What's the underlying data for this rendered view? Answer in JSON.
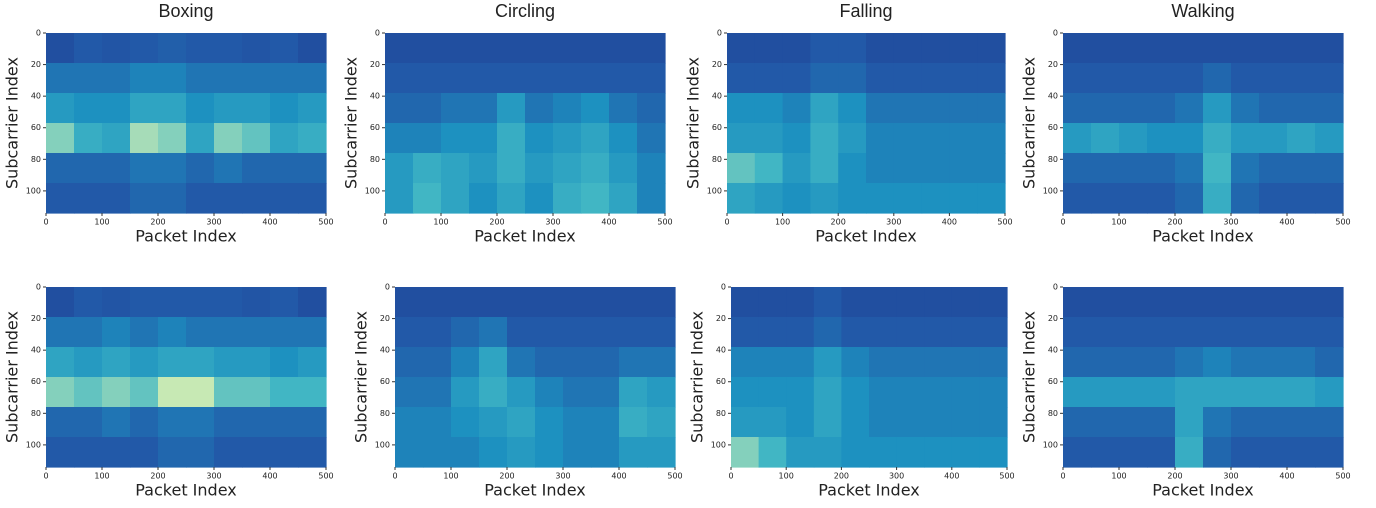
{
  "chart_data": [
    {
      "type": "heatmap",
      "title": "Boxing",
      "xlabel": "Packet Index",
      "ylabel": "Subcarrier Index",
      "xlim": [
        0,
        500
      ],
      "ylim": [
        114,
        0
      ],
      "xticks": [
        0,
        100,
        200,
        300,
        400,
        500
      ],
      "yticks": [
        0,
        20,
        40,
        60,
        80,
        100
      ],
      "zlim": [
        0,
        1
      ],
      "colorscale": [
        "#1f2f86",
        "#2259a8",
        "#1d91c0",
        "#41b6c4",
        "#c7e9b4",
        "#eef8b0"
      ],
      "z": [
        [
          0.15,
          0.2,
          0.18,
          0.2,
          0.22,
          0.2,
          0.2,
          0.18,
          0.2,
          0.15
        ],
        [
          0.3,
          0.3,
          0.3,
          0.35,
          0.35,
          0.3,
          0.3,
          0.3,
          0.3,
          0.3
        ],
        [
          0.45,
          0.4,
          0.4,
          0.5,
          0.5,
          0.4,
          0.45,
          0.45,
          0.4,
          0.45
        ],
        [
          0.7,
          0.55,
          0.5,
          0.75,
          0.7,
          0.5,
          0.7,
          0.65,
          0.5,
          0.55
        ],
        [
          0.25,
          0.25,
          0.25,
          0.3,
          0.3,
          0.25,
          0.3,
          0.25,
          0.25,
          0.25
        ],
        [
          0.2,
          0.2,
          0.2,
          0.25,
          0.25,
          0.2,
          0.2,
          0.2,
          0.2,
          0.2
        ]
      ]
    },
    {
      "type": "heatmap",
      "title": "Circling",
      "xlabel": "Packet Index",
      "ylabel": "Subcarrier Index",
      "xlim": [
        0,
        500
      ],
      "ylim": [
        114,
        0
      ],
      "xticks": [
        0,
        100,
        200,
        300,
        400,
        500
      ],
      "yticks": [
        0,
        20,
        40,
        60,
        80,
        100
      ],
      "zlim": [
        0,
        1
      ],
      "colorscale": [
        "#1f2f86",
        "#2259a8",
        "#1d91c0",
        "#41b6c4",
        "#c7e9b4",
        "#eef8b0"
      ],
      "z": [
        [
          0.15,
          0.15,
          0.15,
          0.15,
          0.15,
          0.15,
          0.15,
          0.15,
          0.15,
          0.15
        ],
        [
          0.2,
          0.2,
          0.2,
          0.2,
          0.2,
          0.2,
          0.2,
          0.2,
          0.2,
          0.2
        ],
        [
          0.25,
          0.25,
          0.3,
          0.3,
          0.45,
          0.3,
          0.35,
          0.4,
          0.3,
          0.25
        ],
        [
          0.35,
          0.35,
          0.4,
          0.4,
          0.55,
          0.4,
          0.45,
          0.5,
          0.4,
          0.3
        ],
        [
          0.45,
          0.55,
          0.5,
          0.45,
          0.55,
          0.45,
          0.5,
          0.55,
          0.45,
          0.35
        ],
        [
          0.45,
          0.6,
          0.5,
          0.4,
          0.5,
          0.4,
          0.55,
          0.6,
          0.5,
          0.35
        ]
      ]
    },
    {
      "type": "heatmap",
      "title": "Falling",
      "xlabel": "Packet Index",
      "ylabel": "Subcarrier Index",
      "xlim": [
        0,
        500
      ],
      "ylim": [
        114,
        0
      ],
      "xticks": [
        0,
        100,
        200,
        300,
        400,
        500
      ],
      "yticks": [
        0,
        20,
        40,
        60,
        80,
        100
      ],
      "zlim": [
        0,
        1
      ],
      "colorscale": [
        "#1f2f86",
        "#2259a8",
        "#1d91c0",
        "#41b6c4",
        "#c7e9b4",
        "#eef8b0"
      ],
      "z": [
        [
          0.15,
          0.15,
          0.15,
          0.2,
          0.2,
          0.15,
          0.15,
          0.15,
          0.15,
          0.15
        ],
        [
          0.2,
          0.2,
          0.2,
          0.25,
          0.25,
          0.2,
          0.2,
          0.2,
          0.2,
          0.2
        ],
        [
          0.4,
          0.4,
          0.35,
          0.5,
          0.4,
          0.3,
          0.3,
          0.3,
          0.3,
          0.3
        ],
        [
          0.45,
          0.45,
          0.4,
          0.55,
          0.45,
          0.35,
          0.35,
          0.35,
          0.35,
          0.35
        ],
        [
          0.65,
          0.6,
          0.45,
          0.55,
          0.4,
          0.35,
          0.35,
          0.35,
          0.35,
          0.35
        ],
        [
          0.5,
          0.45,
          0.4,
          0.45,
          0.4,
          0.4,
          0.4,
          0.4,
          0.4,
          0.4
        ]
      ]
    },
    {
      "type": "heatmap",
      "title": "Walking",
      "xlabel": "Packet Index",
      "ylabel": "Subcarrier Index",
      "xlim": [
        0,
        500
      ],
      "ylim": [
        114,
        0
      ],
      "xticks": [
        0,
        100,
        200,
        300,
        400,
        500
      ],
      "yticks": [
        0,
        20,
        40,
        60,
        80,
        100
      ],
      "zlim": [
        0,
        1
      ],
      "colorscale": [
        "#1f2f86",
        "#2259a8",
        "#1d91c0",
        "#41b6c4",
        "#c7e9b4",
        "#eef8b0"
      ],
      "z": [
        [
          0.15,
          0.15,
          0.15,
          0.15,
          0.15,
          0.15,
          0.15,
          0.15,
          0.15,
          0.15
        ],
        [
          0.2,
          0.2,
          0.2,
          0.2,
          0.2,
          0.25,
          0.2,
          0.2,
          0.2,
          0.2
        ],
        [
          0.25,
          0.25,
          0.25,
          0.25,
          0.3,
          0.45,
          0.3,
          0.25,
          0.25,
          0.25
        ],
        [
          0.45,
          0.5,
          0.45,
          0.4,
          0.4,
          0.55,
          0.45,
          0.45,
          0.5,
          0.45
        ],
        [
          0.25,
          0.25,
          0.25,
          0.25,
          0.3,
          0.6,
          0.3,
          0.25,
          0.25,
          0.25
        ],
        [
          0.2,
          0.2,
          0.2,
          0.2,
          0.25,
          0.55,
          0.25,
          0.2,
          0.2,
          0.2
        ]
      ]
    },
    {
      "type": "heatmap",
      "xlabel": "Packet Index",
      "ylabel": "Subcarrier Index",
      "xlim": [
        0,
        500
      ],
      "ylim": [
        114,
        0
      ],
      "xticks": [
        0,
        100,
        200,
        300,
        400,
        500
      ],
      "yticks": [
        0,
        20,
        40,
        60,
        80,
        100
      ],
      "zlim": [
        0,
        1
      ],
      "colorscale": [
        "#1f2f86",
        "#2259a8",
        "#1d91c0",
        "#41b6c4",
        "#c7e9b4",
        "#eef8b0"
      ],
      "z": [
        [
          0.15,
          0.2,
          0.18,
          0.2,
          0.2,
          0.2,
          0.2,
          0.18,
          0.2,
          0.15
        ],
        [
          0.3,
          0.3,
          0.35,
          0.3,
          0.35,
          0.3,
          0.3,
          0.3,
          0.3,
          0.3
        ],
        [
          0.5,
          0.45,
          0.5,
          0.45,
          0.5,
          0.5,
          0.45,
          0.45,
          0.4,
          0.45
        ],
        [
          0.7,
          0.65,
          0.7,
          0.65,
          0.8,
          0.8,
          0.65,
          0.65,
          0.6,
          0.6
        ],
        [
          0.25,
          0.25,
          0.3,
          0.25,
          0.3,
          0.3,
          0.25,
          0.25,
          0.25,
          0.25
        ],
        [
          0.2,
          0.2,
          0.2,
          0.2,
          0.25,
          0.25,
          0.2,
          0.2,
          0.2,
          0.2
        ]
      ]
    },
    {
      "type": "heatmap",
      "xlabel": "Packet Index",
      "ylabel": "Subcarrier Index",
      "xlim": [
        0,
        500
      ],
      "ylim": [
        114,
        0
      ],
      "xticks": [
        0,
        100,
        200,
        300,
        400,
        500
      ],
      "yticks": [
        0,
        20,
        40,
        60,
        80,
        100
      ],
      "zlim": [
        0,
        1
      ],
      "colorscale": [
        "#1f2f86",
        "#2259a8",
        "#1d91c0",
        "#41b6c4",
        "#c7e9b4",
        "#eef8b0"
      ],
      "z": [
        [
          0.15,
          0.15,
          0.15,
          0.15,
          0.15,
          0.15,
          0.15,
          0.15,
          0.15,
          0.15
        ],
        [
          0.2,
          0.2,
          0.25,
          0.3,
          0.2,
          0.2,
          0.2,
          0.2,
          0.2,
          0.2
        ],
        [
          0.25,
          0.25,
          0.35,
          0.5,
          0.3,
          0.25,
          0.25,
          0.25,
          0.3,
          0.3
        ],
        [
          0.3,
          0.3,
          0.45,
          0.55,
          0.45,
          0.35,
          0.3,
          0.3,
          0.5,
          0.45
        ],
        [
          0.35,
          0.35,
          0.4,
          0.45,
          0.5,
          0.4,
          0.35,
          0.35,
          0.55,
          0.5
        ],
        [
          0.35,
          0.35,
          0.35,
          0.4,
          0.45,
          0.4,
          0.35,
          0.35,
          0.45,
          0.45
        ]
      ]
    },
    {
      "type": "heatmap",
      "xlabel": "Packet Index",
      "ylabel": "Subcarrier Index",
      "xlim": [
        0,
        500
      ],
      "ylim": [
        114,
        0
      ],
      "xticks": [
        0,
        100,
        200,
        300,
        400,
        500
      ],
      "yticks": [
        0,
        20,
        40,
        60,
        80,
        100
      ],
      "zlim": [
        0,
        1
      ],
      "colorscale": [
        "#1f2f86",
        "#2259a8",
        "#1d91c0",
        "#41b6c4",
        "#c7e9b4",
        "#eef8b0"
      ],
      "z": [
        [
          0.15,
          0.15,
          0.15,
          0.2,
          0.15,
          0.15,
          0.15,
          0.15,
          0.15,
          0.15
        ],
        [
          0.2,
          0.2,
          0.2,
          0.25,
          0.2,
          0.2,
          0.2,
          0.2,
          0.2,
          0.2
        ],
        [
          0.35,
          0.35,
          0.35,
          0.45,
          0.35,
          0.3,
          0.3,
          0.3,
          0.3,
          0.3
        ],
        [
          0.4,
          0.4,
          0.4,
          0.5,
          0.4,
          0.35,
          0.35,
          0.35,
          0.35,
          0.35
        ],
        [
          0.45,
          0.45,
          0.4,
          0.5,
          0.4,
          0.35,
          0.35,
          0.35,
          0.35,
          0.35
        ],
        [
          0.7,
          0.6,
          0.45,
          0.45,
          0.4,
          0.4,
          0.4,
          0.4,
          0.4,
          0.4
        ]
      ]
    },
    {
      "type": "heatmap",
      "xlabel": "Packet Index",
      "ylabel": "Subcarrier Index",
      "xlim": [
        0,
        500
      ],
      "ylim": [
        114,
        0
      ],
      "xticks": [
        0,
        100,
        200,
        300,
        400,
        500
      ],
      "yticks": [
        0,
        20,
        40,
        60,
        80,
        100
      ],
      "zlim": [
        0,
        1
      ],
      "colorscale": [
        "#1f2f86",
        "#2259a8",
        "#1d91c0",
        "#41b6c4",
        "#c7e9b4",
        "#eef8b0"
      ],
      "z": [
        [
          0.15,
          0.15,
          0.15,
          0.15,
          0.15,
          0.15,
          0.15,
          0.15,
          0.15,
          0.15
        ],
        [
          0.2,
          0.2,
          0.2,
          0.2,
          0.2,
          0.2,
          0.2,
          0.2,
          0.2,
          0.2
        ],
        [
          0.25,
          0.25,
          0.25,
          0.25,
          0.3,
          0.35,
          0.3,
          0.3,
          0.3,
          0.25
        ],
        [
          0.45,
          0.45,
          0.45,
          0.45,
          0.5,
          0.5,
          0.5,
          0.5,
          0.5,
          0.45
        ],
        [
          0.25,
          0.25,
          0.25,
          0.25,
          0.5,
          0.3,
          0.25,
          0.25,
          0.25,
          0.25
        ],
        [
          0.2,
          0.2,
          0.2,
          0.2,
          0.55,
          0.25,
          0.2,
          0.2,
          0.2,
          0.2
        ]
      ]
    }
  ]
}
